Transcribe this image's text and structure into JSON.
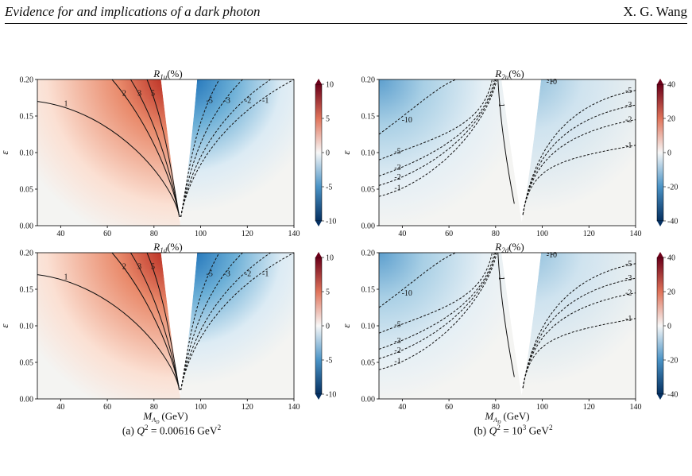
{
  "header": {
    "running_title": "Evidence for and implications of a dark photon",
    "running_author": "X. G. Wang"
  },
  "figure": {
    "x_axis_label": "M",
    "x_axis_subscript": "A",
    "x_axis_subsubscript": "D",
    "x_axis_unit": "(GeV)",
    "captions": [
      {
        "prefix": "(a) ",
        "var": "Q",
        "sup": "2",
        "value": " = 0.00616 GeV",
        "unit_sup": "2"
      },
      {
        "prefix": "(b) ",
        "var": "Q",
        "sup": "2",
        "value": " = 10",
        "value_sup": "3",
        "unit": " GeV",
        "unit_sup": "2"
      }
    ]
  },
  "chart_data": [
    {
      "type": "heatmap",
      "title": "R1u(%)",
      "title_main": "R",
      "title_sub": "1u",
      "title_tail": "(%)",
      "ylabel": "ε",
      "xlim": [
        30,
        140
      ],
      "ylim": [
        0,
        0.2
      ],
      "x_ticks": [
        40,
        60,
        80,
        100,
        120,
        140
      ],
      "y_ticks": [
        0.0,
        0.05,
        0.1,
        0.15,
        0.2
      ],
      "y_tick_labels": [
        "0.00",
        "0.05",
        "0.10",
        "0.15",
        "0.20"
      ],
      "colorbar": {
        "min": -10,
        "max": 10,
        "ticks": [
          10,
          5,
          0,
          -5,
          -10
        ],
        "colormap": "red-white-blue"
      },
      "resonance_mass": 91.2,
      "left_contours": [
        {
          "level": 1,
          "label": "1"
        },
        {
          "level": 2,
          "label": "2"
        },
        {
          "level": 3,
          "label": "3"
        },
        {
          "level": 5,
          "label": "5"
        }
      ],
      "right_contours": [
        {
          "level": -1,
          "label": "-1"
        },
        {
          "level": -2,
          "label": "-2"
        },
        {
          "level": -3,
          "label": "-3"
        },
        {
          "level": -5,
          "label": "-5"
        }
      ],
      "left_sign": "positive",
      "right_sign": "negative"
    },
    {
      "type": "heatmap",
      "title": "R2u(%)",
      "title_main": "R",
      "title_sub": "2u",
      "title_tail": "(%)",
      "ylabel": "ε",
      "xlim": [
        30,
        140
      ],
      "ylim": [
        0,
        0.2
      ],
      "x_ticks": [
        40,
        60,
        80,
        100,
        120,
        140
      ],
      "y_ticks": [
        0.0,
        0.05,
        0.1,
        0.15,
        0.2
      ],
      "y_tick_labels": [
        "0.00",
        "0.05",
        "0.10",
        "0.15",
        "0.20"
      ],
      "colorbar": {
        "min": -40,
        "max": 40,
        "ticks": [
          40,
          20,
          0,
          -20,
          -40
        ],
        "colormap": "red-white-blue"
      },
      "resonance_mass": 91.2,
      "left_contours": [
        {
          "level": -1,
          "label": "-1"
        },
        {
          "level": -2,
          "label": "-2"
        },
        {
          "level": -3,
          "label": "-3"
        },
        {
          "level": -5,
          "label": "-5"
        },
        {
          "level": -10,
          "label": "-10"
        }
      ],
      "right_contours": [
        {
          "level": -1,
          "label": "-1"
        },
        {
          "level": -2,
          "label": "-2"
        },
        {
          "level": -3,
          "label": "-3"
        },
        {
          "level": -5,
          "label": "-5"
        },
        {
          "level": -10,
          "label": "-10"
        }
      ],
      "center_contour": {
        "level": 1,
        "label": "1"
      },
      "left_sign": "negative",
      "right_sign": "negative"
    },
    {
      "type": "heatmap",
      "title": "R1d(%)",
      "title_main": "R",
      "title_sub": "1d",
      "title_tail": "(%)",
      "ylabel": "ε",
      "xlim": [
        30,
        140
      ],
      "ylim": [
        0,
        0.2
      ],
      "x_ticks": [
        40,
        60,
        80,
        100,
        120,
        140
      ],
      "y_ticks": [
        0.0,
        0.05,
        0.1,
        0.15,
        0.2
      ],
      "y_tick_labels": [
        "0.00",
        "0.05",
        "0.10",
        "0.15",
        "0.20"
      ],
      "colorbar": {
        "min": -10,
        "max": 10,
        "ticks": [
          10,
          5,
          0,
          -5,
          -10
        ],
        "colormap": "red-white-blue"
      },
      "resonance_mass": 91.2,
      "left_contours": [
        {
          "level": 1,
          "label": "1"
        },
        {
          "level": 2,
          "label": "2"
        },
        {
          "level": 3,
          "label": "3"
        },
        {
          "level": 5,
          "label": "5"
        }
      ],
      "right_contours": [
        {
          "level": -1,
          "label": "-1"
        },
        {
          "level": -2,
          "label": "-2"
        },
        {
          "level": -3,
          "label": "-3"
        },
        {
          "level": -5,
          "label": "-5"
        }
      ],
      "left_sign": "positive",
      "right_sign": "negative"
    },
    {
      "type": "heatmap",
      "title": "R2d(%)",
      "title_main": "R",
      "title_sub": "2d",
      "title_tail": "(%)",
      "ylabel": "ε",
      "xlim": [
        30,
        140
      ],
      "ylim": [
        0,
        0.2
      ],
      "x_ticks": [
        40,
        60,
        80,
        100,
        120,
        140
      ],
      "y_ticks": [
        0.0,
        0.05,
        0.1,
        0.15,
        0.2
      ],
      "y_tick_labels": [
        "0.00",
        "0.05",
        "0.10",
        "0.15",
        "0.20"
      ],
      "colorbar": {
        "min": -40,
        "max": 40,
        "ticks": [
          40,
          20,
          0,
          -20,
          -40
        ],
        "colormap": "red-white-blue"
      },
      "resonance_mass": 91.2,
      "left_contours": [
        {
          "level": -1,
          "label": "-1"
        },
        {
          "level": -2,
          "label": "-2"
        },
        {
          "level": -3,
          "label": "-3"
        },
        {
          "level": -5,
          "label": "-5"
        },
        {
          "level": -10,
          "label": "-10"
        }
      ],
      "right_contours": [
        {
          "level": -1,
          "label": "-1"
        },
        {
          "level": -2,
          "label": "-2"
        },
        {
          "level": -3,
          "label": "-3"
        },
        {
          "level": -5,
          "label": "-5"
        },
        {
          "level": -10,
          "label": "-10"
        }
      ],
      "center_contour": {
        "level": 1,
        "label": "1"
      },
      "left_sign": "negative",
      "right_sign": "negative"
    }
  ],
  "colors": {
    "red_max": "#6b0019",
    "red_mid": "#e98a6b",
    "white": "#f7f7f7",
    "blue_mid": "#6aaed6",
    "blue_max": "#053061",
    "background_tint": "#f4f4f2"
  }
}
